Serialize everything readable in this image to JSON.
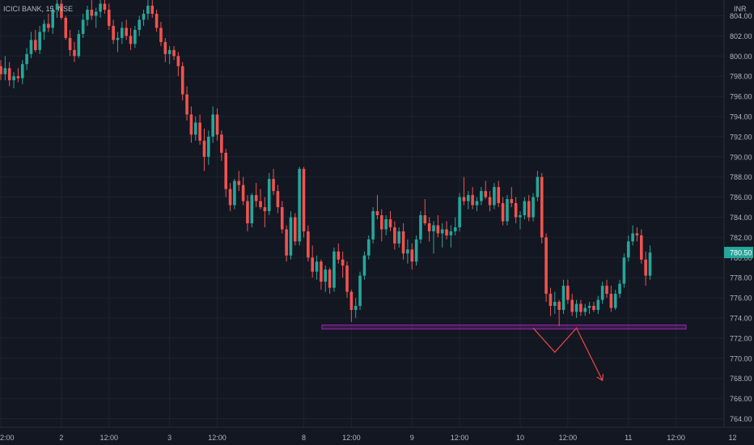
{
  "chart_header": {
    "symbol_label": "ICICI BANK, 15, NSE",
    "currency_label": "INR"
  },
  "chart_data": {
    "type": "candlestick",
    "timeframe": "15",
    "price_axis": {
      "ylim": [
        762.5,
        805.5
      ],
      "ticks": [
        764.0,
        766.0,
        768.0,
        770.0,
        772.0,
        774.0,
        776.0,
        778.0,
        780.0,
        782.0,
        784.0,
        786.0,
        788.0,
        790.0,
        792.0,
        794.0,
        796.0,
        798.0,
        800.0,
        802.0,
        804.0
      ],
      "tick_labels": [
        "764.00",
        "766.00",
        "768.00",
        "770.00",
        "772.00",
        "774.00",
        "776.00",
        "778.00",
        "780.00",
        "782.00",
        "784.00",
        "786.00",
        "788.00",
        "790.00",
        "792.00",
        "794.00",
        "796.00",
        "798.00",
        "800.00",
        "802.00",
        "804.00"
      ]
    },
    "time_axis": {
      "labels": [
        "2:00",
        "2",
        "12:00",
        "3",
        "12:00",
        "8",
        "12:00",
        "9",
        "12:00",
        "10",
        "12:00",
        "11",
        "12:00",
        "12"
      ],
      "label_bar_index": [
        0,
        14,
        25,
        39,
        50,
        70,
        81,
        95,
        106,
        120,
        131,
        145,
        156,
        170
      ]
    },
    "last_price": {
      "value": 780.5,
      "label": "780.50"
    },
    "colors": {
      "up": "#26a69a",
      "down": "#ef5350",
      "support_zone": "#9c27b0",
      "projection": "#e84545",
      "grid": "#1e222d",
      "text": "#b2b5be"
    },
    "candles_ohlc": [
      [
        799.0,
        799.6,
        797.6,
        798.2
      ],
      [
        798.2,
        800.0,
        797.6,
        798.8
      ],
      [
        798.8,
        799.4,
        797.0,
        797.6
      ],
      [
        797.6,
        798.4,
        796.8,
        798.0
      ],
      [
        798.0,
        798.8,
        797.4,
        797.8
      ],
      [
        797.8,
        799.6,
        797.2,
        799.2
      ],
      [
        799.2,
        800.8,
        798.6,
        800.2
      ],
      [
        800.2,
        802.4,
        799.8,
        801.6
      ],
      [
        801.6,
        802.6,
        800.4,
        800.6
      ],
      [
        800.6,
        803.0,
        800.2,
        802.4
      ],
      [
        802.4,
        803.6,
        801.6,
        803.2
      ],
      [
        803.2,
        804.2,
        802.4,
        802.8
      ],
      [
        802.8,
        805.0,
        802.2,
        804.6
      ],
      [
        804.6,
        806.0,
        803.8,
        805.2
      ],
      [
        805.2,
        806.0,
        803.6,
        803.8
      ],
      [
        803.8,
        804.0,
        801.6,
        801.8
      ],
      [
        801.8,
        802.6,
        800.0,
        800.6
      ],
      [
        800.6,
        801.4,
        799.4,
        800.0
      ],
      [
        800.0,
        802.6,
        799.8,
        802.2
      ],
      [
        802.2,
        804.2,
        801.8,
        803.6
      ],
      [
        803.6,
        805.0,
        803.0,
        804.6
      ],
      [
        804.6,
        805.6,
        803.6,
        804.0
      ],
      [
        804.0,
        804.8,
        802.8,
        804.4
      ],
      [
        804.4,
        805.6,
        803.8,
        805.2
      ],
      [
        805.2,
        806.0,
        804.2,
        804.6
      ],
      [
        804.6,
        805.2,
        802.6,
        803.0
      ],
      [
        803.0,
        803.6,
        801.2,
        801.6
      ],
      [
        801.6,
        802.4,
        800.4,
        801.8
      ],
      [
        801.8,
        803.4,
        801.2,
        802.8
      ],
      [
        802.8,
        803.6,
        801.6,
        802.0
      ],
      [
        802.0,
        802.8,
        800.6,
        801.2
      ],
      [
        801.2,
        803.0,
        800.8,
        802.6
      ],
      [
        802.6,
        804.0,
        802.0,
        803.6
      ],
      [
        803.6,
        804.6,
        803.0,
        804.2
      ],
      [
        804.2,
        805.6,
        803.6,
        805.0
      ],
      [
        805.0,
        806.0,
        803.8,
        804.2
      ],
      [
        804.2,
        804.6,
        802.4,
        802.8
      ],
      [
        802.8,
        803.4,
        801.0,
        801.4
      ],
      [
        801.4,
        801.8,
        799.4,
        800.2
      ],
      [
        800.2,
        801.0,
        799.2,
        800.6
      ],
      [
        800.6,
        801.0,
        799.6,
        800.0
      ],
      [
        800.0,
        800.4,
        798.0,
        799.0
      ],
      [
        799.0,
        799.4,
        795.6,
        796.2
      ],
      [
        796.2,
        797.0,
        793.6,
        794.2
      ],
      [
        794.2,
        795.0,
        791.4,
        792.2
      ],
      [
        792.2,
        794.0,
        791.6,
        793.4
      ],
      [
        793.4,
        794.2,
        791.2,
        791.6
      ],
      [
        791.6,
        792.8,
        788.6,
        790.0
      ],
      [
        790.0,
        792.6,
        789.2,
        792.0
      ],
      [
        792.0,
        795.0,
        791.4,
        794.2
      ],
      [
        794.2,
        794.8,
        791.6,
        792.2
      ],
      [
        792.2,
        792.6,
        789.6,
        790.4
      ],
      [
        790.4,
        790.8,
        786.0,
        786.8
      ],
      [
        786.8,
        787.4,
        784.6,
        785.2
      ],
      [
        785.2,
        787.8,
        784.8,
        787.6
      ],
      [
        787.6,
        788.6,
        786.6,
        787.2
      ],
      [
        787.2,
        788.0,
        785.2,
        785.6
      ],
      [
        785.6,
        786.2,
        782.6,
        783.4
      ],
      [
        783.4,
        786.4,
        783.0,
        786.2
      ],
      [
        786.2,
        787.4,
        785.0,
        785.6
      ],
      [
        785.6,
        786.8,
        784.8,
        785.0
      ],
      [
        785.0,
        786.0,
        783.0,
        784.6
      ],
      [
        784.6,
        788.4,
        784.2,
        787.8
      ],
      [
        787.8,
        788.8,
        786.2,
        786.6
      ],
      [
        786.6,
        787.2,
        784.4,
        785.0
      ],
      [
        785.0,
        785.6,
        782.4,
        782.8
      ],
      [
        782.8,
        783.2,
        779.6,
        780.2
      ],
      [
        780.2,
        784.6,
        779.8,
        784.0
      ],
      [
        784.0,
        784.4,
        781.2,
        781.6
      ],
      [
        781.6,
        789.0,
        781.2,
        788.8
      ],
      [
        788.8,
        789.0,
        782.0,
        782.6
      ],
      [
        782.6,
        783.2,
        779.6,
        780.0
      ],
      [
        780.0,
        781.2,
        778.0,
        778.6
      ],
      [
        778.6,
        780.2,
        777.8,
        779.6
      ],
      [
        779.6,
        779.8,
        776.8,
        777.6
      ],
      [
        777.6,
        779.2,
        776.6,
        778.8
      ],
      [
        778.8,
        779.0,
        776.4,
        777.0
      ],
      [
        777.0,
        781.0,
        776.6,
        780.6
      ],
      [
        780.6,
        781.4,
        779.4,
        779.8
      ],
      [
        779.8,
        780.6,
        778.0,
        779.2
      ],
      [
        779.2,
        779.6,
        776.0,
        776.6
      ],
      [
        776.6,
        776.8,
        773.6,
        774.8
      ],
      [
        774.8,
        776.0,
        774.0,
        775.2
      ],
      [
        775.2,
        778.6,
        774.8,
        778.2
      ],
      [
        778.2,
        780.6,
        777.8,
        780.2
      ],
      [
        780.2,
        782.2,
        779.8,
        781.8
      ],
      [
        781.8,
        785.0,
        781.4,
        784.6
      ],
      [
        784.6,
        786.2,
        783.8,
        784.2
      ],
      [
        784.2,
        784.8,
        781.6,
        782.8
      ],
      [
        782.8,
        784.2,
        782.2,
        783.8
      ],
      [
        783.8,
        784.6,
        782.6,
        783.0
      ],
      [
        783.0,
        783.6,
        780.8,
        781.4
      ],
      [
        781.4,
        783.0,
        781.0,
        782.6
      ],
      [
        782.6,
        783.4,
        779.8,
        780.4
      ],
      [
        780.4,
        781.8,
        779.4,
        780.8
      ],
      [
        780.8,
        781.4,
        778.8,
        779.6
      ],
      [
        779.6,
        782.2,
        779.2,
        781.8
      ],
      [
        781.8,
        784.6,
        781.4,
        784.2
      ],
      [
        784.2,
        785.8,
        783.2,
        783.4
      ],
      [
        783.4,
        784.0,
        781.6,
        782.6
      ],
      [
        782.6,
        783.6,
        780.4,
        783.2
      ],
      [
        783.2,
        784.2,
        782.0,
        782.4
      ],
      [
        782.4,
        783.4,
        781.0,
        782.8
      ],
      [
        782.8,
        783.6,
        781.8,
        782.2
      ],
      [
        782.2,
        783.2,
        781.0,
        782.6
      ],
      [
        782.6,
        784.0,
        782.2,
        783.0
      ],
      [
        783.0,
        786.4,
        782.6,
        786.0
      ],
      [
        786.0,
        788.0,
        785.2,
        785.6
      ],
      [
        785.6,
        786.6,
        784.8,
        786.2
      ],
      [
        786.2,
        787.0,
        784.8,
        785.2
      ],
      [
        785.2,
        786.0,
        784.6,
        785.6
      ],
      [
        785.6,
        787.0,
        785.2,
        786.6
      ],
      [
        786.6,
        787.6,
        785.8,
        786.0
      ],
      [
        786.0,
        786.6,
        784.6,
        785.2
      ],
      [
        785.2,
        787.4,
        784.8,
        787.0
      ],
      [
        787.0,
        787.6,
        785.0,
        785.4
      ],
      [
        785.4,
        786.0,
        783.2,
        783.6
      ],
      [
        783.6,
        786.2,
        783.2,
        785.8
      ],
      [
        785.8,
        787.0,
        785.0,
        785.4
      ],
      [
        785.4,
        786.0,
        783.4,
        784.0
      ],
      [
        784.0,
        784.6,
        782.8,
        784.2
      ],
      [
        784.2,
        786.0,
        783.8,
        785.6
      ],
      [
        785.6,
        786.2,
        783.6,
        784.0
      ],
      [
        784.0,
        786.4,
        783.6,
        786.0
      ],
      [
        786.0,
        788.6,
        785.6,
        788.0
      ],
      [
        788.0,
        788.4,
        781.4,
        782.0
      ],
      [
        782.0,
        782.4,
        775.6,
        776.4
      ],
      [
        776.4,
        777.0,
        774.2,
        775.2
      ],
      [
        775.2,
        776.6,
        774.4,
        775.6
      ],
      [
        775.6,
        775.8,
        773.2,
        774.8
      ],
      [
        774.8,
        777.8,
        774.4,
        777.2
      ],
      [
        777.2,
        777.8,
        775.4,
        775.8
      ],
      [
        775.8,
        776.4,
        774.2,
        774.6
      ],
      [
        774.6,
        775.8,
        774.0,
        775.4
      ],
      [
        775.4,
        775.8,
        774.2,
        774.6
      ],
      [
        774.6,
        775.4,
        774.2,
        775.0
      ],
      [
        775.0,
        775.6,
        774.4,
        775.2
      ],
      [
        775.2,
        775.6,
        774.6,
        774.8
      ],
      [
        774.8,
        776.2,
        774.4,
        775.8
      ],
      [
        775.8,
        777.6,
        775.4,
        777.2
      ],
      [
        777.2,
        777.8,
        776.0,
        776.4
      ],
      [
        776.4,
        777.2,
        774.6,
        775.0
      ],
      [
        775.0,
        776.8,
        774.8,
        776.4
      ],
      [
        776.4,
        777.8,
        776.0,
        777.4
      ],
      [
        777.4,
        780.4,
        777.0,
        780.0
      ],
      [
        780.0,
        782.2,
        779.6,
        781.6
      ],
      [
        781.6,
        783.2,
        781.2,
        782.4
      ],
      [
        782.4,
        783.0,
        781.6,
        782.2
      ],
      [
        782.2,
        782.8,
        779.4,
        779.8
      ],
      [
        779.8,
        780.6,
        777.2,
        778.2
      ],
      [
        778.2,
        781.2,
        777.8,
        780.5
      ]
    ],
    "support_zone": {
      "price_top": 773.3,
      "price_bottom": 772.9
    },
    "projection_path": [
      [
        123,
        773.0
      ],
      [
        128,
        770.6
      ],
      [
        133,
        773.0
      ],
      [
        139,
        767.8
      ]
    ]
  }
}
